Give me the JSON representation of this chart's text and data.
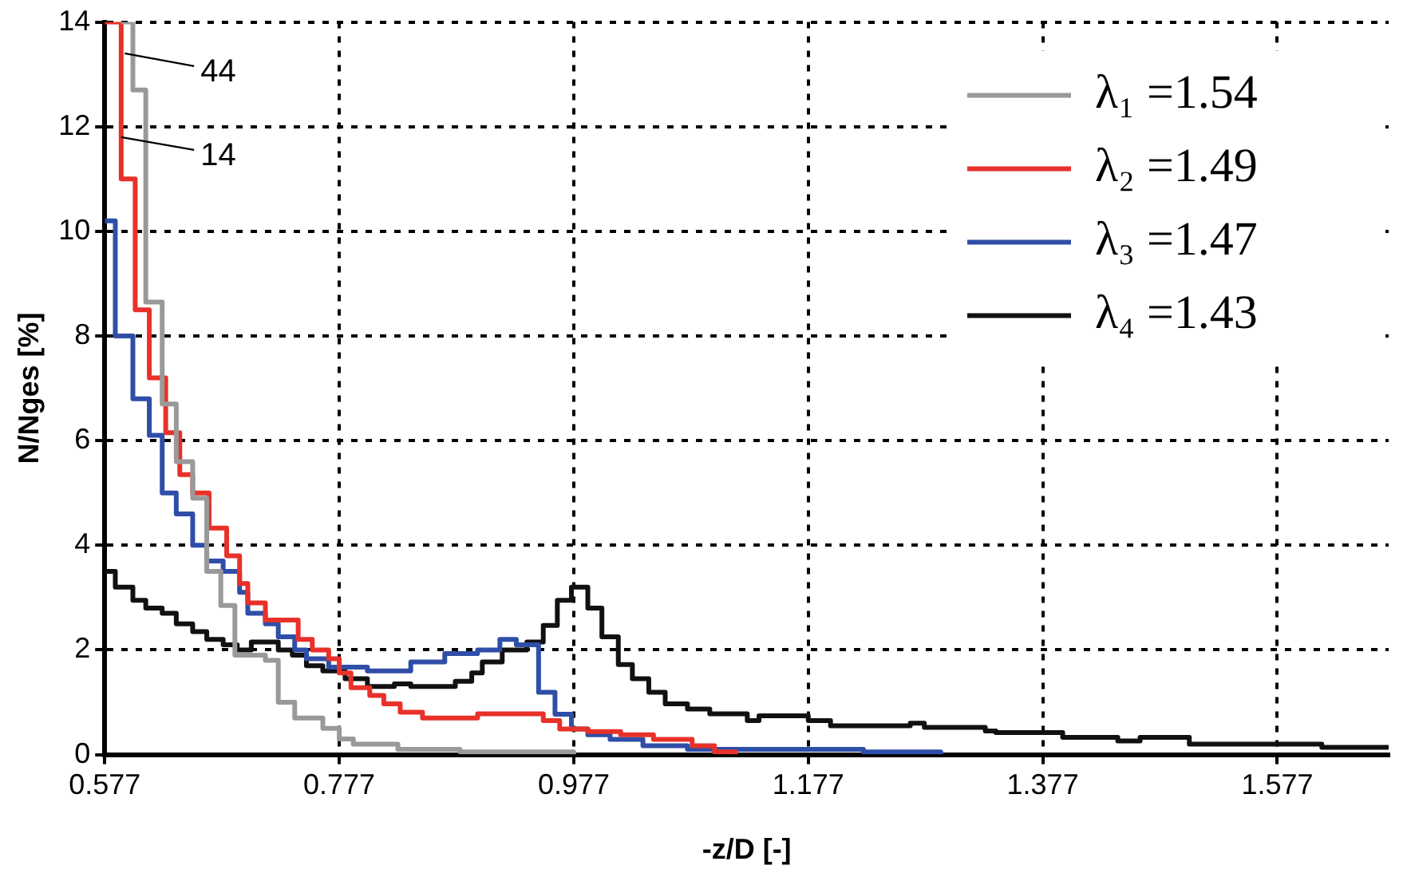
{
  "chart_data": {
    "type": "step",
    "xlabel": "-z/D [-]",
    "ylabel": "N/Nges [%]",
    "xlim": [
      0.577,
      1.672
    ],
    "xticks": [
      0.577,
      0.777,
      0.977,
      1.177,
      1.377,
      1.577
    ],
    "ylim": [
      0,
      14
    ],
    "yticks": [
      0,
      2,
      4,
      6,
      8,
      10,
      12,
      14
    ],
    "grid": true,
    "legend": "top right",
    "marker": "none",
    "line_style": "solid",
    "annotations": [
      {
        "text": "44",
        "x": 0.594,
        "y": 13.4
      },
      {
        "text": "14",
        "x": 0.591,
        "y": 11.8
      }
    ],
    "series": [
      {
        "name": "λ₁ =1.54",
        "color": "#999999",
        "x": [
          0.591,
          0.601,
          0.612,
          0.626,
          0.638,
          0.652,
          0.664,
          0.676,
          0.688,
          0.714,
          0.725,
          0.739,
          0.763,
          0.777,
          0.789,
          0.827,
          0.88,
          0.977
        ],
        "values": [
          14,
          12.7,
          8.65,
          6.7,
          5.6,
          4.9,
          3.5,
          2.85,
          1.9,
          1.8,
          1.0,
          0.7,
          0.5,
          0.3,
          0.2,
          0.1,
          0.05,
          0
        ]
      },
      {
        "name": "λ₂ =1.49",
        "color": "#e8312a",
        "x": [
          0.577,
          0.591,
          0.603,
          0.615,
          0.629,
          0.641,
          0.652,
          0.666,
          0.681,
          0.692,
          0.699,
          0.714,
          0.742,
          0.754,
          0.768,
          0.777,
          0.787,
          0.803,
          0.815,
          0.829,
          0.848,
          0.895,
          0.951,
          0.965,
          0.989,
          1.017,
          1.045,
          1.078,
          1.097,
          1.115
        ],
        "values": [
          14,
          11.0,
          8.5,
          7.2,
          6.15,
          5.35,
          5.0,
          4.33,
          3.8,
          3.27,
          2.9,
          2.57,
          2.2,
          2.0,
          1.83,
          1.56,
          1.28,
          1.13,
          0.97,
          0.81,
          0.7,
          0.78,
          0.65,
          0.49,
          0.44,
          0.38,
          0.29,
          0.17,
          0.05,
          0
        ]
      },
      {
        "name": "λ₃ =1.47",
        "color": "#2f4ea8",
        "x": [
          0.577,
          0.586,
          0.601,
          0.615,
          0.626,
          0.638,
          0.652,
          0.664,
          0.678,
          0.692,
          0.699,
          0.714,
          0.725,
          0.739,
          0.749,
          0.768,
          0.801,
          0.838,
          0.867,
          0.895,
          0.914,
          0.928,
          0.947,
          0.961,
          0.975,
          0.989,
          1.008,
          1.036,
          1.074,
          1.224,
          1.29
        ],
        "values": [
          10.2,
          8.0,
          6.8,
          6.1,
          5.0,
          4.6,
          4.0,
          3.7,
          3.5,
          3.1,
          2.7,
          2.5,
          2.25,
          2.0,
          1.83,
          1.67,
          1.6,
          1.77,
          1.93,
          2.0,
          2.2,
          2.1,
          1.19,
          0.77,
          0.49,
          0.38,
          0.29,
          0.17,
          0.1,
          0.05,
          0
        ]
      },
      {
        "name": "λ₄ =1.43",
        "color": "#111111",
        "x": [
          0.577,
          0.586,
          0.601,
          0.612,
          0.626,
          0.638,
          0.652,
          0.664,
          0.678,
          0.69,
          0.702,
          0.725,
          0.737,
          0.749,
          0.763,
          0.782,
          0.801,
          0.824,
          0.838,
          0.876,
          0.89,
          0.899,
          0.916,
          0.937,
          0.951,
          0.963,
          0.975,
          0.989,
          1.001,
          1.015,
          1.027,
          1.041,
          1.055,
          1.074,
          1.093,
          1.125,
          1.135,
          1.177,
          1.196,
          1.264,
          1.276,
          1.328,
          1.337,
          1.394,
          1.441,
          1.46,
          1.502,
          1.615,
          1.672
        ],
        "values": [
          3.5,
          3.2,
          2.95,
          2.8,
          2.7,
          2.5,
          2.35,
          2.2,
          2.1,
          2.0,
          2.15,
          2.0,
          1.9,
          1.7,
          1.6,
          1.45,
          1.3,
          1.35,
          1.3,
          1.4,
          1.56,
          1.77,
          2.0,
          2.15,
          2.47,
          2.95,
          3.2,
          2.8,
          2.25,
          1.72,
          1.45,
          1.19,
          0.97,
          0.87,
          0.78,
          0.65,
          0.74,
          0.65,
          0.55,
          0.6,
          0.52,
          0.45,
          0.42,
          0.33,
          0.26,
          0.33,
          0.2,
          0.14,
          0.14
        ]
      }
    ]
  }
}
